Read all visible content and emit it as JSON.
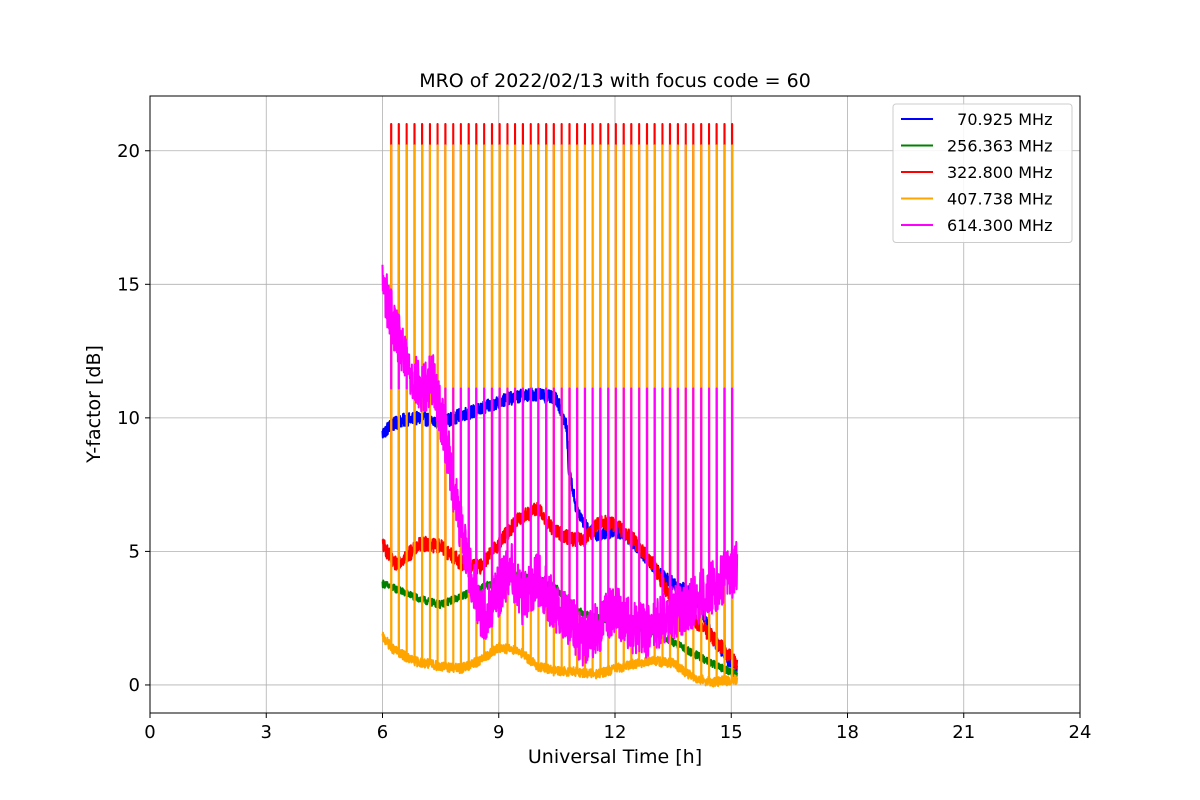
{
  "chart_data": {
    "type": "line",
    "title": "MRO of 2022/02/13 with focus code = 60",
    "xlabel": "Universal Time [h]",
    "ylabel": "Y-factor [dB]",
    "xlim": [
      0,
      24
    ],
    "ylim": [
      -1.05,
      22.05
    ],
    "xticks": [
      0,
      3,
      6,
      9,
      12,
      15,
      18,
      21,
      24
    ],
    "yticks": [
      0,
      5,
      10,
      15,
      20
    ],
    "grid": true,
    "legend_position": "upper right",
    "spike_period_h": 0.2,
    "spike_start_h": 6.23,
    "spike_end_h": 15.1,
    "series": [
      {
        "name": "  70.925 MHz",
        "color": "#0000ff",
        "kind": "trace",
        "points": [
          [
            6.0,
            9.4
          ],
          [
            6.2,
            9.7
          ],
          [
            6.5,
            9.9
          ],
          [
            7.0,
            10.0
          ],
          [
            7.5,
            9.8
          ],
          [
            8.0,
            10.1
          ],
          [
            8.5,
            10.3
          ],
          [
            9.0,
            10.6
          ],
          [
            9.5,
            10.8
          ],
          [
            10.0,
            10.9
          ],
          [
            10.5,
            10.7
          ],
          [
            10.75,
            9.7
          ],
          [
            10.8,
            8.2
          ],
          [
            11.0,
            6.6
          ],
          [
            11.3,
            5.8
          ],
          [
            11.6,
            5.6
          ],
          [
            12.0,
            5.8
          ],
          [
            12.3,
            5.6
          ],
          [
            12.6,
            5.1
          ],
          [
            12.9,
            4.6
          ],
          [
            13.2,
            4.1
          ],
          [
            13.5,
            3.8
          ],
          [
            13.8,
            3.6
          ],
          [
            14.0,
            3.3
          ],
          [
            14.3,
            2.6
          ],
          [
            14.6,
            1.6
          ],
          [
            14.9,
            1.0
          ],
          [
            15.15,
            0.6
          ]
        ],
        "noise": 0.25
      },
      {
        "name": "256.363 MHz",
        "color": "#008000",
        "kind": "trace",
        "points": [
          [
            6.0,
            3.8
          ],
          [
            6.5,
            3.5
          ],
          [
            7.0,
            3.2
          ],
          [
            7.5,
            3.0
          ],
          [
            8.0,
            3.3
          ],
          [
            8.5,
            3.6
          ],
          [
            9.0,
            3.9
          ],
          [
            9.5,
            4.1
          ],
          [
            10.0,
            4.0
          ],
          [
            10.5,
            3.6
          ],
          [
            11.0,
            2.8
          ],
          [
            11.5,
            2.5
          ],
          [
            12.0,
            2.4
          ],
          [
            12.5,
            2.2
          ],
          [
            13.0,
            2.0
          ],
          [
            13.5,
            1.6
          ],
          [
            14.0,
            1.2
          ],
          [
            14.5,
            0.8
          ],
          [
            15.15,
            0.4
          ]
        ],
        "noise": 0.14
      },
      {
        "name": "322.800 MHz",
        "color": "#ff0000",
        "kind": "trace_spikes",
        "spike_top": 21.0,
        "points": [
          [
            6.0,
            5.3
          ],
          [
            6.3,
            4.5
          ],
          [
            6.6,
            4.8
          ],
          [
            7.0,
            5.3
          ],
          [
            7.5,
            5.2
          ],
          [
            8.0,
            4.6
          ],
          [
            8.5,
            4.4
          ],
          [
            9.0,
            5.3
          ],
          [
            9.5,
            6.2
          ],
          [
            10.0,
            6.6
          ],
          [
            10.4,
            5.8
          ],
          [
            10.8,
            5.5
          ],
          [
            11.2,
            5.4
          ],
          [
            11.6,
            6.1
          ],
          [
            12.0,
            6.0
          ],
          [
            12.5,
            5.4
          ],
          [
            13.0,
            4.5
          ],
          [
            13.5,
            3.0
          ],
          [
            14.0,
            2.5
          ],
          [
            14.5,
            1.8
          ],
          [
            15.15,
            0.8
          ]
        ],
        "noise": 0.28
      },
      {
        "name": "407.738 MHz",
        "color": "#ffa500",
        "kind": "trace_spikes",
        "spike_top": 20.2,
        "points": [
          [
            6.0,
            1.8
          ],
          [
            6.3,
            1.3
          ],
          [
            6.8,
            0.9
          ],
          [
            7.5,
            0.7
          ],
          [
            8.0,
            0.6
          ],
          [
            8.5,
            0.9
          ],
          [
            9.0,
            1.4
          ],
          [
            9.5,
            1.3
          ],
          [
            10.0,
            0.7
          ],
          [
            10.5,
            0.5
          ],
          [
            11.0,
            0.5
          ],
          [
            11.5,
            0.4
          ],
          [
            12.0,
            0.6
          ],
          [
            12.5,
            0.8
          ],
          [
            13.0,
            0.9
          ],
          [
            13.5,
            0.8
          ],
          [
            14.0,
            0.3
          ],
          [
            14.5,
            0.1
          ],
          [
            15.15,
            0.2
          ]
        ],
        "noise": 0.18
      },
      {
        "name": "614.300 MHz",
        "color": "#ff00ff",
        "kind": "trace_spikes",
        "spike_top": 11.1,
        "points": [
          [
            6.0,
            15.0
          ],
          [
            6.3,
            13.5
          ],
          [
            6.6,
            12.0
          ],
          [
            7.0,
            11.0
          ],
          [
            7.3,
            11.5
          ],
          [
            7.6,
            9.5
          ],
          [
            8.0,
            6.0
          ],
          [
            8.3,
            4.0
          ],
          [
            8.6,
            2.5
          ],
          [
            9.0,
            3.5
          ],
          [
            9.3,
            4.5
          ],
          [
            9.6,
            3.2
          ],
          [
            10.0,
            4.0
          ],
          [
            10.4,
            3.0
          ],
          [
            10.8,
            2.5
          ],
          [
            11.2,
            1.6
          ],
          [
            11.6,
            2.2
          ],
          [
            12.0,
            2.8
          ],
          [
            12.4,
            2.2
          ],
          [
            12.8,
            2.0
          ],
          [
            13.2,
            2.4
          ],
          [
            13.6,
            2.8
          ],
          [
            14.0,
            3.0
          ],
          [
            14.4,
            3.5
          ],
          [
            14.8,
            4.0
          ],
          [
            15.15,
            4.4
          ]
        ],
        "noise": 1.0
      }
    ]
  }
}
